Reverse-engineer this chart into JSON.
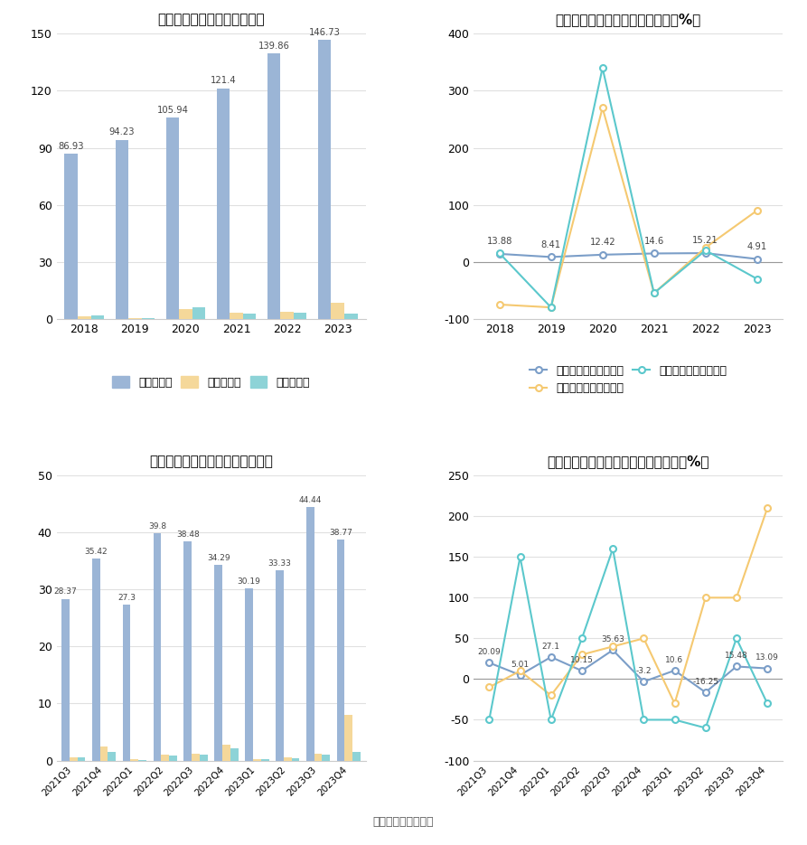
{
  "annual_title": "历年营收、净利情况（亿元）",
  "annual_years": [
    "2018",
    "2019",
    "2020",
    "2021",
    "2022",
    "2023"
  ],
  "annual_revenue": [
    86.93,
    94.23,
    105.94,
    121.4,
    139.86,
    146.73
  ],
  "annual_net_profit": [
    1.5,
    0.3,
    5.2,
    3.1,
    3.8,
    8.5
  ],
  "annual_deducted_profit": [
    1.8,
    0.2,
    6.0,
    2.5,
    3.2,
    2.8
  ],
  "annual_ylim": [
    0,
    150
  ],
  "annual_yticks": [
    0,
    30,
    60,
    90,
    120,
    150
  ],
  "annual_growth_title": "历年营收、净利同比增长率情况（%）",
  "annual_growth_years": [
    "2018",
    "2019",
    "2020",
    "2021",
    "2022",
    "2023"
  ],
  "annual_revenue_growth": [
    13.88,
    8.41,
    12.42,
    14.6,
    15.21,
    4.91
  ],
  "annual_net_profit_growth": [
    -75,
    -80,
    270,
    -55,
    25,
    90
  ],
  "annual_deducted_growth": [
    15,
    -80,
    340,
    -55,
    20,
    -30
  ],
  "annual_growth_ylim": [
    -100,
    400
  ],
  "annual_growth_yticks": [
    -100,
    0,
    100,
    200,
    300,
    400
  ],
  "quarterly_title": "营收、净利季度变动情况（亿元）",
  "quarterly_labels": [
    "2021Q3",
    "2021Q4",
    "2022Q1",
    "2022Q2",
    "2022Q3",
    "2022Q4",
    "2023Q1",
    "2023Q2",
    "2023Q3",
    "2023Q4"
  ],
  "quarterly_revenue": [
    28.37,
    35.42,
    27.3,
    39.8,
    38.48,
    34.29,
    30.19,
    33.33,
    44.44,
    38.77
  ],
  "quarterly_net_profit": [
    0.5,
    2.5,
    0.2,
    1.0,
    1.2,
    2.8,
    0.3,
    0.5,
    1.2,
    8.0
  ],
  "quarterly_deducted_profit": [
    0.6,
    1.5,
    0.1,
    0.9,
    1.1,
    2.2,
    0.2,
    0.4,
    1.0,
    1.5
  ],
  "quarterly_ylim": [
    0,
    50
  ],
  "quarterly_yticks": [
    0,
    10,
    20,
    30,
    40,
    50
  ],
  "quarterly_growth_title": "营收、净利同比增长率季度变动情况（%）",
  "quarterly_growth_labels": [
    "2021Q3",
    "2021Q4",
    "2022Q1",
    "2022Q2",
    "2022Q3",
    "2022Q4",
    "2023Q1",
    "2023Q2",
    "2023Q3",
    "2023Q4"
  ],
  "quarterly_revenue_growth": [
    20.09,
    5.01,
    27.1,
    10.15,
    35.63,
    -3.2,
    10.6,
    -16.25,
    15.48,
    13.09
  ],
  "quarterly_net_profit_growth": [
    -10,
    10,
    -20,
    30,
    40,
    50,
    -30,
    100,
    100,
    210
  ],
  "quarterly_deducted_growth": [
    -50,
    150,
    -50,
    50,
    160,
    -50,
    -50,
    -60,
    50,
    -30
  ],
  "quarterly_growth_ylim": [
    -100,
    250
  ],
  "quarterly_growth_yticks": [
    -100,
    -50,
    0,
    50,
    100,
    150,
    200,
    250
  ],
  "color_revenue_bar": "#9BB5D6",
  "color_net_profit_bar": "#F5D89A",
  "color_deducted_bar": "#8DD3D7",
  "color_revenue_line": "#7B9EC8",
  "color_net_profit_line": "#F5C971",
  "color_deducted_line": "#5BC8CC",
  "source_text": "数据来源：恒生聚源"
}
